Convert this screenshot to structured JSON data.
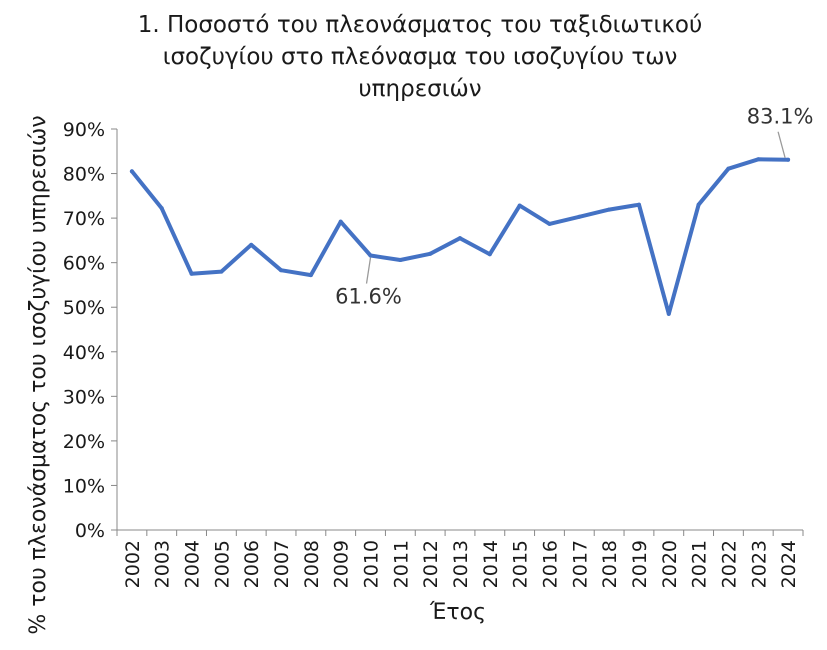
{
  "chart_data": {
    "type": "line",
    "title_lines": [
      "1. Ποσοστό του πλεονάσματος του ταξιδιωτικού",
      "ισοζυγίου στο πλεόνασμα του ισοζυγίου των",
      "υπηρεσιών"
    ],
    "xlabel": "Έτος",
    "ylabel": "% του πλεονάσματος του ισοζυγίου υπηρεσιών",
    "x": [
      "2002",
      "2003",
      "2004",
      "2005",
      "2006",
      "2007",
      "2008",
      "2009",
      "2010",
      "2011",
      "2012",
      "2013",
      "2014",
      "2015",
      "2016",
      "2017",
      "2018",
      "2019",
      "2020",
      "2021",
      "2022",
      "2023",
      "2024"
    ],
    "series": [
      {
        "values": [
          80.5,
          72.2,
          57.5,
          58.0,
          64.0,
          58.3,
          57.2,
          69.2,
          61.6,
          60.6,
          62.0,
          65.5,
          61.9,
          72.8,
          68.7,
          70.3,
          71.9,
          73.0,
          48.5,
          73.0,
          81.1,
          83.2,
          83.1
        ],
        "color": "#4472c4"
      }
    ],
    "ylim": [
      0,
      90
    ],
    "yticks": [
      0,
      10,
      20,
      30,
      40,
      50,
      60,
      70,
      80,
      90
    ],
    "ytick_labels": [
      "0%",
      "10%",
      "20%",
      "30%",
      "40%",
      "50%",
      "60%",
      "70%",
      "80%",
      "90%"
    ],
    "annotations": [
      {
        "x": "2010",
        "text": "61.6%"
      },
      {
        "x": "2024",
        "text": "83.1%"
      }
    ],
    "grid": false,
    "legend": "none"
  }
}
